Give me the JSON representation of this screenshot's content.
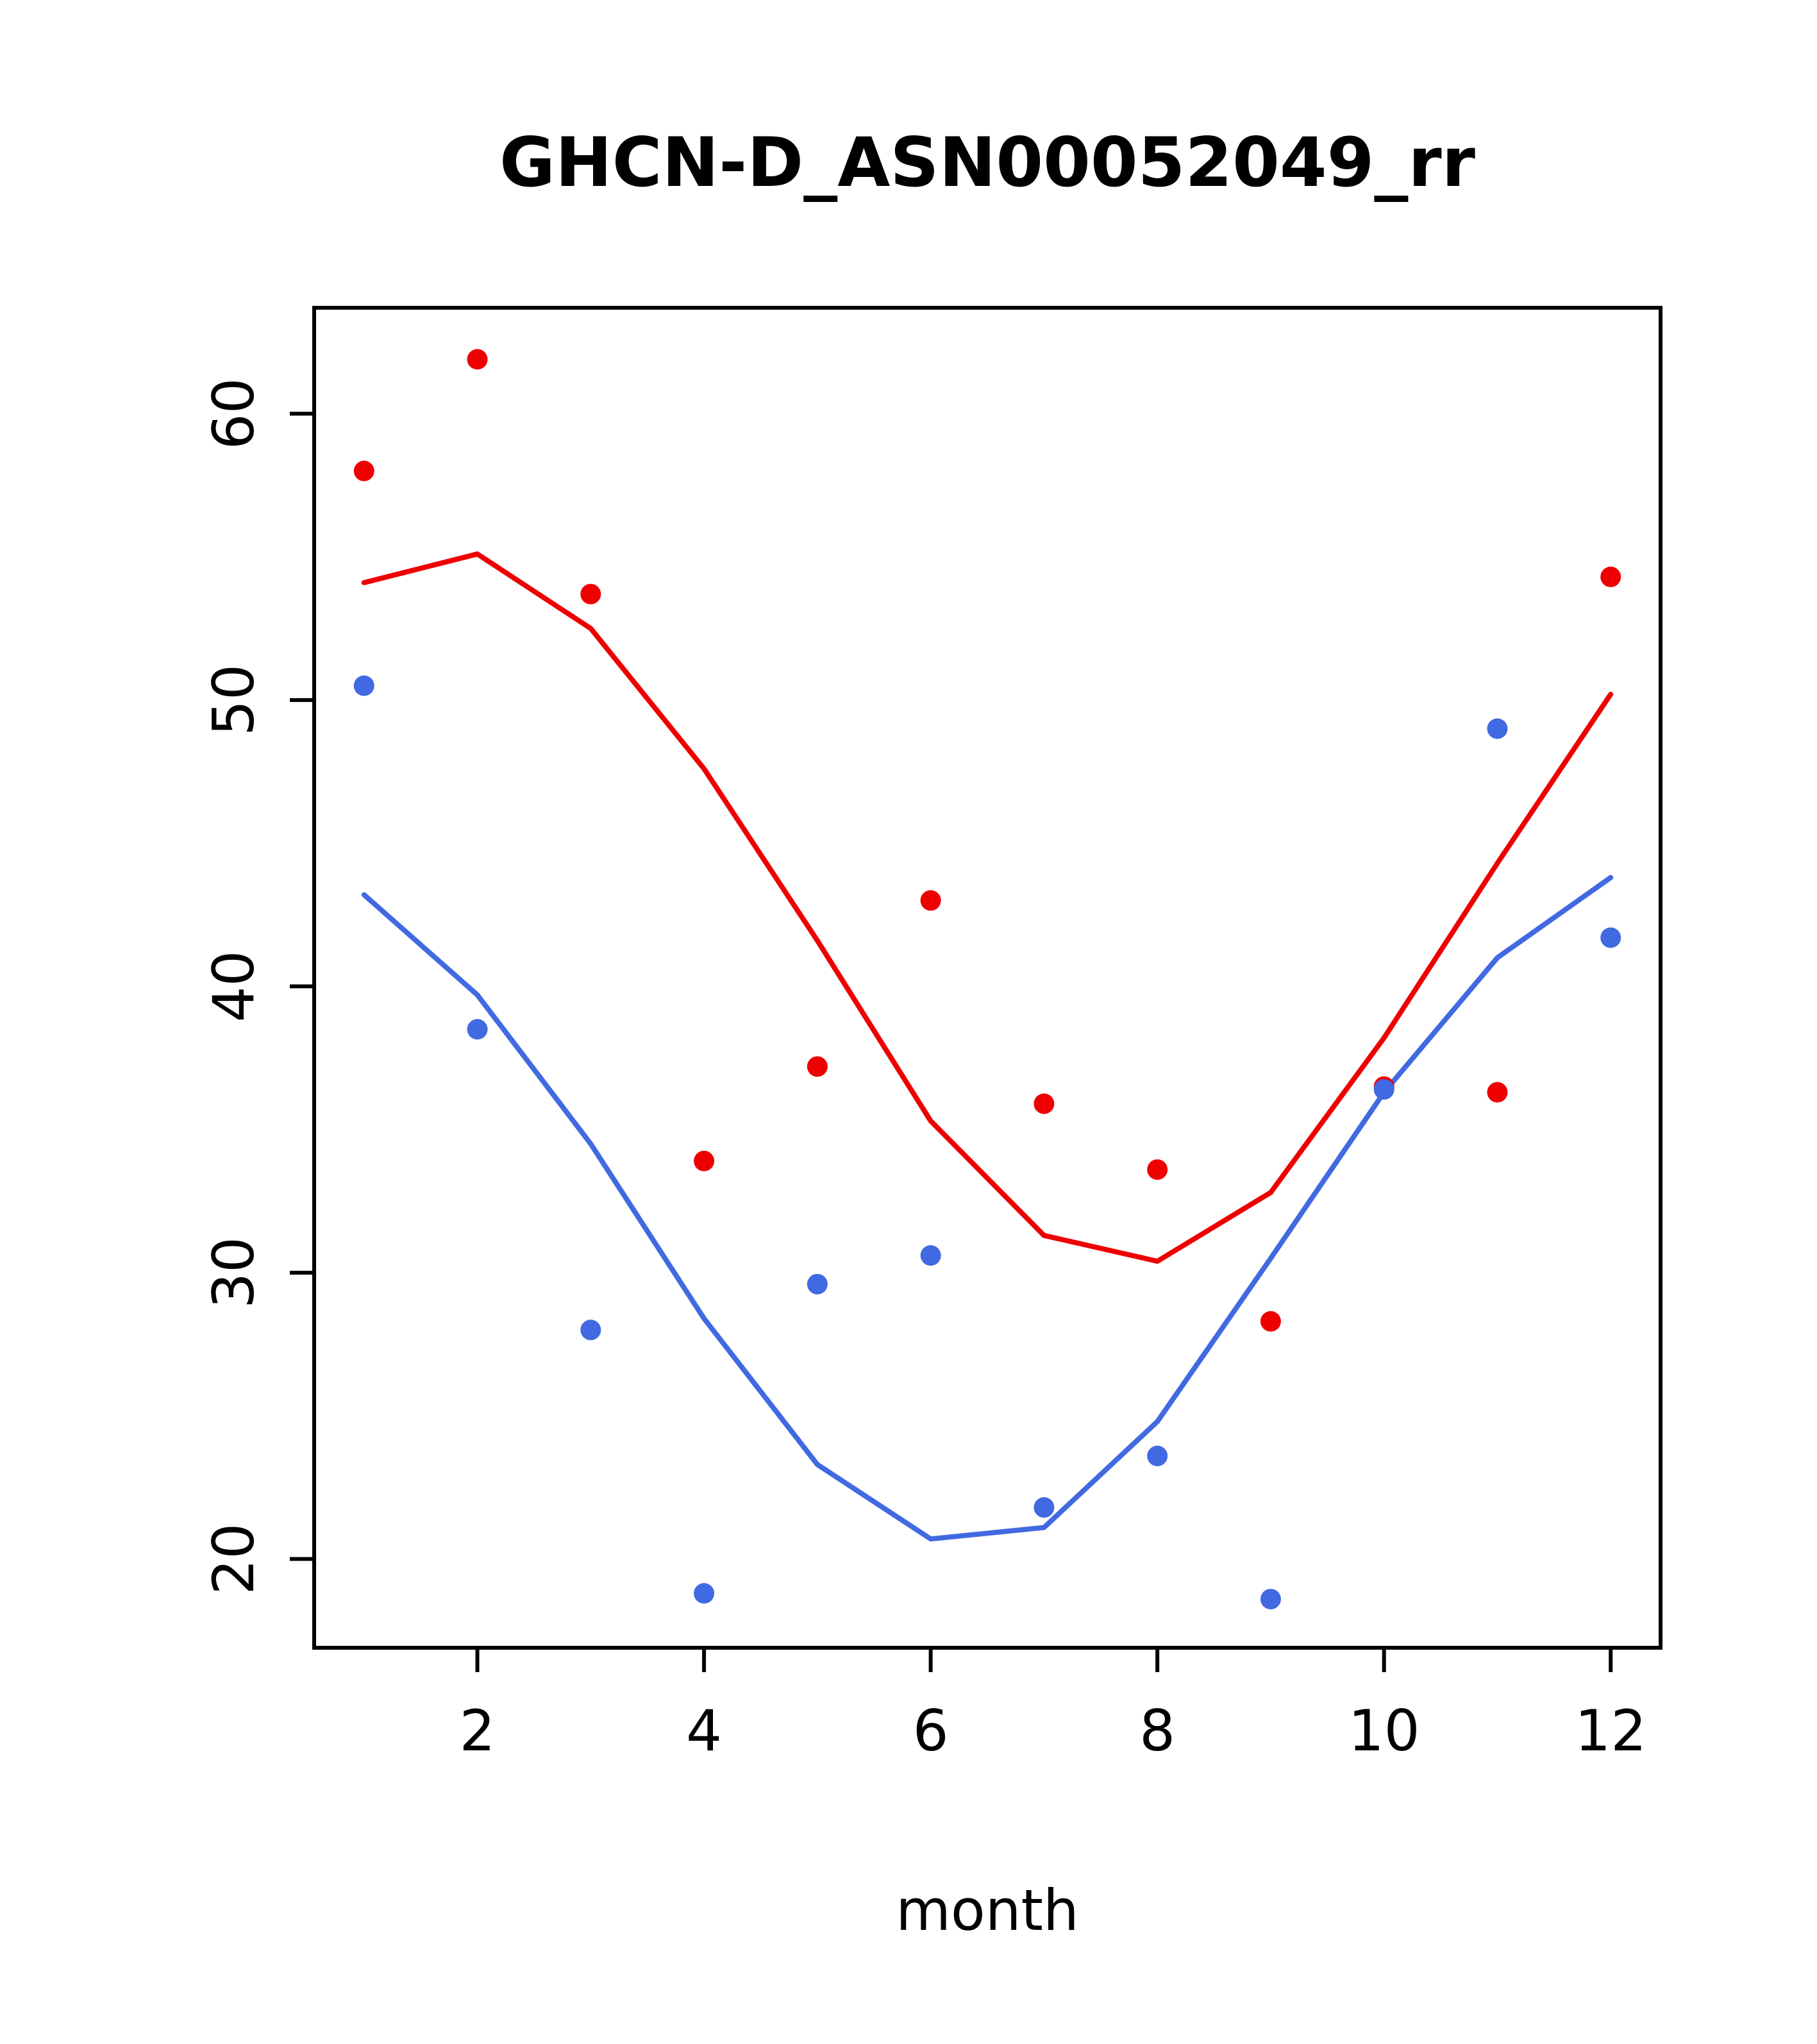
{
  "chart_data": {
    "type": "scatter",
    "title": "GHCN-D_ASN00052049_rr",
    "xlabel": "month",
    "ylabel": "",
    "x": [
      1,
      2,
      3,
      4,
      5,
      6,
      7,
      8,
      9,
      10,
      11,
      12
    ],
    "series": [
      {
        "name": "red-points",
        "kind": "scatter",
        "color": "#EE0000",
        "values": [
          58.0,
          61.9,
          53.7,
          33.9,
          37.2,
          43.0,
          35.9,
          33.6,
          28.3,
          36.5,
          36.3,
          54.3
        ]
      },
      {
        "name": "blue-points",
        "kind": "scatter",
        "color": "#4169E1",
        "values": [
          50.5,
          38.5,
          28.0,
          18.8,
          29.6,
          30.6,
          21.8,
          23.6,
          18.6,
          36.4,
          49.0,
          41.7
        ]
      },
      {
        "name": "red-line",
        "kind": "line",
        "color": "#EE0000",
        "values": [
          54.1,
          55.1,
          52.5,
          47.6,
          41.6,
          35.3,
          31.3,
          30.4,
          32.8,
          38.2,
          44.3,
          50.2
        ]
      },
      {
        "name": "blue-line",
        "kind": "line",
        "color": "#4169E1",
        "values": [
          43.2,
          39.7,
          34.5,
          28.4,
          23.3,
          20.7,
          21.1,
          24.8,
          30.5,
          36.3,
          41.0,
          43.8
        ]
      }
    ],
    "xticks": [
      2,
      4,
      6,
      8,
      10,
      12
    ],
    "yticks": [
      20,
      30,
      40,
      50,
      60
    ],
    "xlim": [
      0.56,
      12.44
    ],
    "ylim": [
      16.9,
      63.7
    ],
    "grid": false,
    "legend": "none"
  }
}
